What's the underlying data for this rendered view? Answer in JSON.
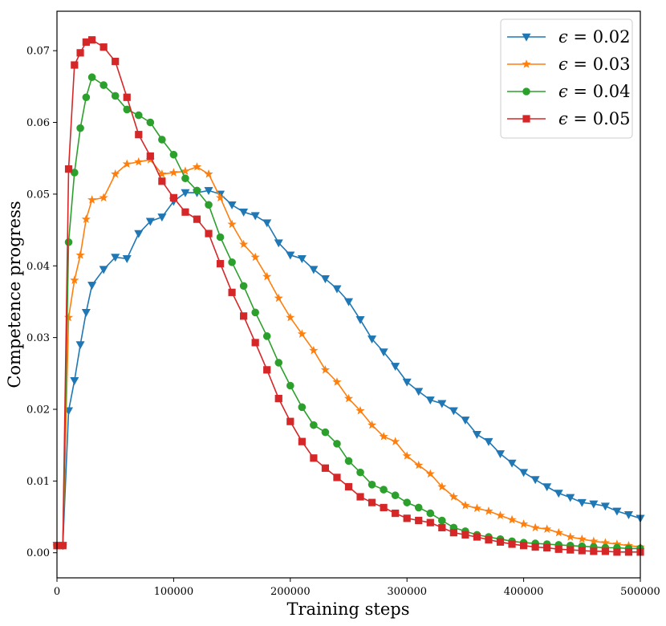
{
  "chart_data": {
    "type": "line",
    "title": "",
    "xlabel": "Training steps",
    "ylabel": "Competence progress",
    "xlim": [
      0,
      500000
    ],
    "ylim": [
      -0.0035,
      0.0755
    ],
    "x_ticks": [
      0,
      100000,
      200000,
      300000,
      400000,
      500000
    ],
    "x_tick_labels": [
      "0",
      "100000",
      "200000",
      "300000",
      "400000",
      "500000"
    ],
    "y_ticks": [
      0.0,
      0.01,
      0.02,
      0.03,
      0.04,
      0.05,
      0.06,
      0.07
    ],
    "y_tick_labels": [
      "0.00",
      "0.01",
      "0.02",
      "0.03",
      "0.04",
      "0.05",
      "0.06",
      "0.07"
    ],
    "grid": false,
    "legend_position": "top-right",
    "series": [
      {
        "name": "ε = 0.02",
        "legend_prefix": "ϵ = ",
        "legend_value": "0.02",
        "color": "#1f77b4",
        "marker": "triangle-down",
        "x": [
          0,
          5000,
          10000,
          15000,
          20000,
          25000,
          30000,
          40000,
          50000,
          60000,
          70000,
          80000,
          90000,
          100000,
          110000,
          120000,
          130000,
          140000,
          150000,
          160000,
          170000,
          180000,
          190000,
          200000,
          210000,
          220000,
          230000,
          240000,
          250000,
          260000,
          270000,
          280000,
          290000,
          300000,
          310000,
          320000,
          330000,
          340000,
          350000,
          360000,
          370000,
          380000,
          390000,
          400000,
          410000,
          420000,
          430000,
          440000,
          450000,
          460000,
          470000,
          480000,
          490000,
          500000
        ],
        "y": [
          0.001,
          0.001,
          0.0198,
          0.024,
          0.029,
          0.0335,
          0.0373,
          0.0395,
          0.0412,
          0.041,
          0.0445,
          0.0462,
          0.0468,
          0.049,
          0.0502,
          0.0502,
          0.0505,
          0.05,
          0.0485,
          0.0475,
          0.047,
          0.046,
          0.0432,
          0.0415,
          0.041,
          0.0395,
          0.0382,
          0.0368,
          0.035,
          0.0325,
          0.0298,
          0.028,
          0.026,
          0.0238,
          0.0225,
          0.0213,
          0.0208,
          0.0198,
          0.0185,
          0.0165,
          0.0155,
          0.0138,
          0.0125,
          0.0112,
          0.0102,
          0.0092,
          0.0083,
          0.0077,
          0.007,
          0.0068,
          0.0065,
          0.0058,
          0.0053,
          0.0048
        ]
      },
      {
        "name": "ε = 0.03",
        "legend_prefix": "ϵ = ",
        "legend_value": "0.03",
        "color": "#ff7f0e",
        "marker": "star",
        "x": [
          0,
          5000,
          10000,
          15000,
          20000,
          25000,
          30000,
          40000,
          50000,
          60000,
          70000,
          80000,
          90000,
          100000,
          110000,
          120000,
          130000,
          140000,
          150000,
          160000,
          170000,
          180000,
          190000,
          200000,
          210000,
          220000,
          230000,
          240000,
          250000,
          260000,
          270000,
          280000,
          290000,
          300000,
          310000,
          320000,
          330000,
          340000,
          350000,
          360000,
          370000,
          380000,
          390000,
          400000,
          410000,
          420000,
          430000,
          440000,
          450000,
          460000,
          470000,
          480000,
          490000,
          500000
        ],
        "y": [
          0.001,
          0.001,
          0.0328,
          0.038,
          0.0415,
          0.0465,
          0.0492,
          0.0495,
          0.0528,
          0.0542,
          0.0545,
          0.0548,
          0.0528,
          0.053,
          0.0532,
          0.0538,
          0.0528,
          0.0495,
          0.0458,
          0.043,
          0.0412,
          0.0385,
          0.0355,
          0.0328,
          0.0305,
          0.0282,
          0.0255,
          0.0238,
          0.0215,
          0.0198,
          0.0178,
          0.0162,
          0.0155,
          0.0135,
          0.0122,
          0.011,
          0.0092,
          0.0078,
          0.0066,
          0.0062,
          0.0058,
          0.0052,
          0.0046,
          0.004,
          0.0035,
          0.0033,
          0.0028,
          0.0022,
          0.0019,
          0.0016,
          0.0014,
          0.0012,
          0.001,
          0.0008
        ]
      },
      {
        "name": "ε = 0.04",
        "legend_prefix": "ϵ = ",
        "legend_value": "0.04",
        "color": "#2ca02c",
        "marker": "circle",
        "x": [
          0,
          5000,
          10000,
          15000,
          20000,
          25000,
          30000,
          40000,
          50000,
          60000,
          70000,
          80000,
          90000,
          100000,
          110000,
          120000,
          130000,
          140000,
          150000,
          160000,
          170000,
          180000,
          190000,
          200000,
          210000,
          220000,
          230000,
          240000,
          250000,
          260000,
          270000,
          280000,
          290000,
          300000,
          310000,
          320000,
          330000,
          340000,
          350000,
          360000,
          370000,
          380000,
          390000,
          400000,
          410000,
          420000,
          430000,
          440000,
          450000,
          460000,
          470000,
          480000,
          490000,
          500000
        ],
        "y": [
          0.001,
          0.001,
          0.0433,
          0.053,
          0.0592,
          0.0635,
          0.0663,
          0.0652,
          0.0637,
          0.0618,
          0.061,
          0.06,
          0.0576,
          0.0555,
          0.0522,
          0.0505,
          0.0485,
          0.044,
          0.0405,
          0.0372,
          0.0335,
          0.0302,
          0.0265,
          0.0233,
          0.0203,
          0.0178,
          0.0168,
          0.0152,
          0.0128,
          0.0112,
          0.0095,
          0.0088,
          0.008,
          0.007,
          0.0063,
          0.0055,
          0.0045,
          0.0035,
          0.003,
          0.0025,
          0.0022,
          0.0019,
          0.0016,
          0.0014,
          0.0013,
          0.0012,
          0.0011,
          0.001,
          0.0009,
          0.0008,
          0.0007,
          0.0007,
          0.0006,
          0.0006
        ]
      },
      {
        "name": "ε = 0.05",
        "legend_prefix": "ϵ = ",
        "legend_value": "0.05",
        "color": "#d62728",
        "marker": "square",
        "x": [
          0,
          5000,
          10000,
          15000,
          20000,
          25000,
          30000,
          40000,
          50000,
          60000,
          70000,
          80000,
          90000,
          100000,
          110000,
          120000,
          130000,
          140000,
          150000,
          160000,
          170000,
          180000,
          190000,
          200000,
          210000,
          220000,
          230000,
          240000,
          250000,
          260000,
          270000,
          280000,
          290000,
          300000,
          310000,
          320000,
          330000,
          340000,
          350000,
          360000,
          370000,
          380000,
          390000,
          400000,
          410000,
          420000,
          430000,
          440000,
          450000,
          460000,
          470000,
          480000,
          490000,
          500000
        ],
        "y": [
          0.001,
          0.001,
          0.0535,
          0.068,
          0.0697,
          0.0712,
          0.0715,
          0.0705,
          0.0685,
          0.0635,
          0.0583,
          0.0553,
          0.0518,
          0.0495,
          0.0475,
          0.0465,
          0.0445,
          0.0403,
          0.0363,
          0.033,
          0.0293,
          0.0255,
          0.0215,
          0.0183,
          0.0155,
          0.0132,
          0.0118,
          0.0105,
          0.0092,
          0.0078,
          0.007,
          0.0063,
          0.0055,
          0.0048,
          0.0045,
          0.0042,
          0.0035,
          0.0028,
          0.0025,
          0.0022,
          0.0018,
          0.0015,
          0.0012,
          0.001,
          0.0008,
          0.0007,
          0.0005,
          0.0004,
          0.0003,
          0.0002,
          0.0002,
          0.0001,
          0.0001,
          0.0001
        ]
      }
    ]
  }
}
